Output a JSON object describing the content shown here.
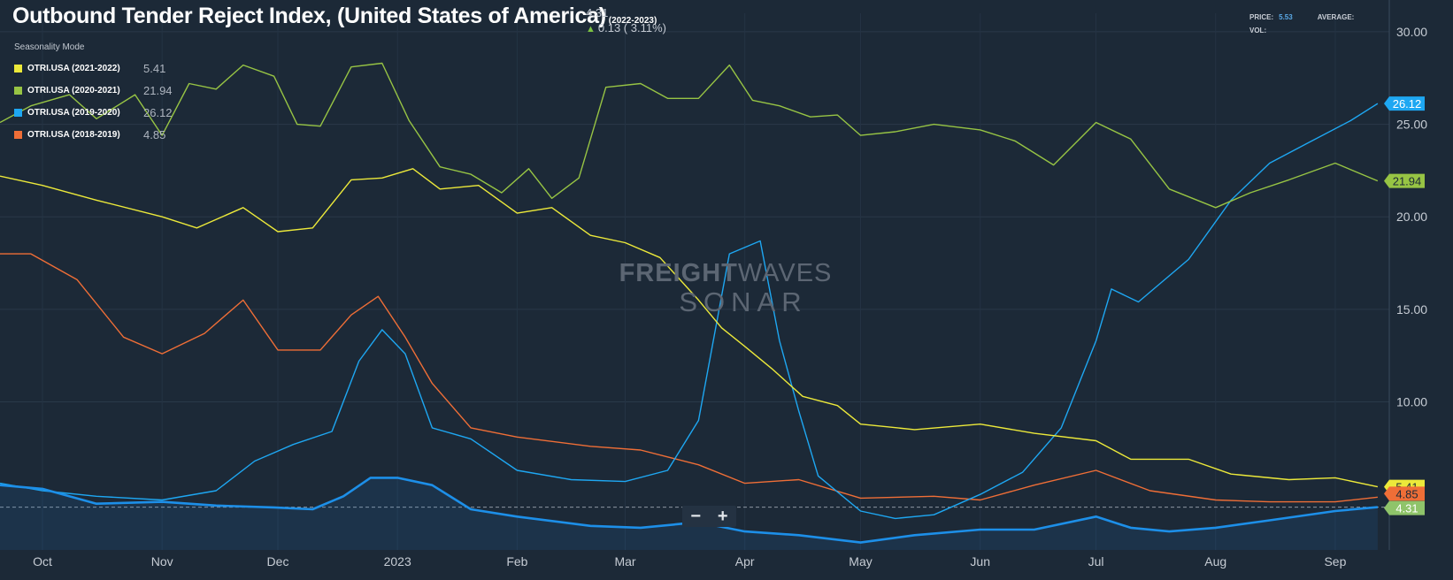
{
  "header": {
    "title": "Outbound Tender Reject Index, (United States of America)",
    "range": "(2022-2023)",
    "last_value": "4.31",
    "change": "0.13 ( 3.11%)"
  },
  "stats": {
    "price_label": "PRICE:",
    "price_value": "5.53",
    "average_label": "AVERAGE:",
    "vol_label": "VOL:"
  },
  "legend": {
    "mode": "Seasonality Mode",
    "items": [
      {
        "name": "OTRI.USA (2021-2022)",
        "value": "5.41",
        "color": "#ece93a"
      },
      {
        "name": "OTRI.USA (2020-2021)",
        "value": "21.94",
        "color": "#97c444"
      },
      {
        "name": "OTRI.USA (2019-2020)",
        "value": "26.12",
        "color": "#1ea7f2"
      },
      {
        "name": "OTRI.USA (2018-2019)",
        "value": "4.85",
        "color": "#ef6e37"
      }
    ]
  },
  "watermark": {
    "brand_bold": "FREIGHT",
    "brand_light": "WAVES",
    "product": "SONAR"
  },
  "zoom": {
    "minus_label": "−",
    "plus_label": "+"
  },
  "chart_data": {
    "type": "line",
    "title": "Outbound Tender Reject Index, (United States of America)",
    "x_range": [
      "2022-09-20",
      "2023-09-15"
    ],
    "x_tick_labels": [
      {
        "label": "Oct",
        "date": "2022-10-01"
      },
      {
        "label": "Nov",
        "date": "2022-11-01"
      },
      {
        "label": "Dec",
        "date": "2022-12-01"
      },
      {
        "label": "2023",
        "date": "2023-01-01"
      },
      {
        "label": "Feb",
        "date": "2023-02-01"
      },
      {
        "label": "Mar",
        "date": "2023-03-01"
      },
      {
        "label": "Apr",
        "date": "2023-04-01"
      },
      {
        "label": "May",
        "date": "2023-05-01"
      },
      {
        "label": "Jun",
        "date": "2023-06-01"
      },
      {
        "label": "Jul",
        "date": "2023-07-01"
      },
      {
        "label": "Aug",
        "date": "2023-08-01"
      },
      {
        "label": "Sep",
        "date": "2023-09-01"
      }
    ],
    "y_ticks": [
      "10.00",
      "15.00",
      "20.00",
      "25.00",
      "30.00"
    ],
    "ylim": [
      2.0,
      31.0
    ],
    "reference_line": 4.31,
    "grid": true,
    "series": [
      {
        "name": "OTRI.USA (2021-2022)",
        "color": "#ece93a",
        "last": "5.41",
        "points": [
          [
            "2022-09-20",
            22.2
          ],
          [
            "2022-10-01",
            21.7
          ],
          [
            "2022-10-15",
            20.9
          ],
          [
            "2022-11-01",
            20.0
          ],
          [
            "2022-11-10",
            19.4
          ],
          [
            "2022-11-22",
            20.5
          ],
          [
            "2022-12-01",
            19.2
          ],
          [
            "2022-12-10",
            19.4
          ],
          [
            "2022-12-20",
            22.0
          ],
          [
            "2022-12-28",
            22.1
          ],
          [
            "2023-01-05",
            22.6
          ],
          [
            "2023-01-12",
            21.5
          ],
          [
            "2023-01-22",
            21.7
          ],
          [
            "2023-02-01",
            20.2
          ],
          [
            "2023-02-10",
            20.5
          ],
          [
            "2023-02-20",
            19.0
          ],
          [
            "2023-03-01",
            18.6
          ],
          [
            "2023-03-10",
            17.8
          ],
          [
            "2023-03-20",
            15.5
          ],
          [
            "2023-03-26",
            14.0
          ],
          [
            "2023-04-01",
            13.0
          ],
          [
            "2023-04-08",
            11.8
          ],
          [
            "2023-04-16",
            10.3
          ],
          [
            "2023-04-25",
            9.8
          ],
          [
            "2023-05-01",
            8.8
          ],
          [
            "2023-05-15",
            8.5
          ],
          [
            "2023-06-01",
            8.8
          ],
          [
            "2023-06-15",
            8.3
          ],
          [
            "2023-07-01",
            7.9
          ],
          [
            "2023-07-10",
            6.9
          ],
          [
            "2023-07-25",
            6.9
          ],
          [
            "2023-08-05",
            6.1
          ],
          [
            "2023-08-20",
            5.8
          ],
          [
            "2023-09-01",
            5.9
          ],
          [
            "2023-09-12",
            5.41
          ]
        ]
      },
      {
        "name": "OTRI.USA (2020-2021)",
        "color": "#97c444",
        "last": "21.94",
        "points": [
          [
            "2022-09-20",
            25.1
          ],
          [
            "2022-09-28",
            26.0
          ],
          [
            "2022-10-08",
            26.6
          ],
          [
            "2022-10-15",
            25.3
          ],
          [
            "2022-10-25",
            26.6
          ],
          [
            "2022-11-01",
            24.4
          ],
          [
            "2022-11-08",
            27.2
          ],
          [
            "2022-11-15",
            26.9
          ],
          [
            "2022-11-22",
            28.2
          ],
          [
            "2022-11-30",
            27.6
          ],
          [
            "2022-12-06",
            25.0
          ],
          [
            "2022-12-12",
            24.9
          ],
          [
            "2022-12-20",
            28.1
          ],
          [
            "2022-12-28",
            28.3
          ],
          [
            "2023-01-04",
            25.2
          ],
          [
            "2023-01-12",
            22.7
          ],
          [
            "2023-01-20",
            22.3
          ],
          [
            "2023-01-28",
            21.3
          ],
          [
            "2023-02-04",
            22.6
          ],
          [
            "2023-02-10",
            21.0
          ],
          [
            "2023-02-17",
            22.1
          ],
          [
            "2023-02-24",
            27.0
          ],
          [
            "2023-03-05",
            27.2
          ],
          [
            "2023-03-12",
            26.4
          ],
          [
            "2023-03-20",
            26.4
          ],
          [
            "2023-03-28",
            28.2
          ],
          [
            "2023-04-03",
            26.3
          ],
          [
            "2023-04-10",
            26.0
          ],
          [
            "2023-04-18",
            25.4
          ],
          [
            "2023-04-25",
            25.5
          ],
          [
            "2023-05-01",
            24.4
          ],
          [
            "2023-05-10",
            24.6
          ],
          [
            "2023-05-20",
            25.0
          ],
          [
            "2023-06-01",
            24.7
          ],
          [
            "2023-06-10",
            24.1
          ],
          [
            "2023-06-20",
            22.8
          ],
          [
            "2023-07-01",
            25.1
          ],
          [
            "2023-07-10",
            24.2
          ],
          [
            "2023-07-20",
            21.5
          ],
          [
            "2023-08-01",
            20.5
          ],
          [
            "2023-08-10",
            21.3
          ],
          [
            "2023-08-20",
            22.0
          ],
          [
            "2023-09-01",
            22.9
          ],
          [
            "2023-09-12",
            21.94
          ]
        ]
      },
      {
        "name": "OTRI.USA (2019-2020)",
        "color": "#1ea7f2",
        "last": "26.12",
        "points": [
          [
            "2022-09-20",
            5.6
          ],
          [
            "2022-10-01",
            5.2
          ],
          [
            "2022-10-15",
            4.9
          ],
          [
            "2022-11-01",
            4.7
          ],
          [
            "2022-11-15",
            5.2
          ],
          [
            "2022-11-25",
            6.8
          ],
          [
            "2022-12-05",
            7.7
          ],
          [
            "2022-12-15",
            8.4
          ],
          [
            "2022-12-22",
            12.2
          ],
          [
            "2022-12-28",
            13.9
          ],
          [
            "2023-01-03",
            12.6
          ],
          [
            "2023-01-10",
            8.6
          ],
          [
            "2023-01-20",
            8.0
          ],
          [
            "2023-02-01",
            6.3
          ],
          [
            "2023-02-15",
            5.8
          ],
          [
            "2023-03-01",
            5.7
          ],
          [
            "2023-03-12",
            6.3
          ],
          [
            "2023-03-20",
            9.0
          ],
          [
            "2023-03-28",
            18.0
          ],
          [
            "2023-04-05",
            18.7
          ],
          [
            "2023-04-10",
            13.3
          ],
          [
            "2023-04-15",
            9.5
          ],
          [
            "2023-04-20",
            6.0
          ],
          [
            "2023-05-01",
            4.1
          ],
          [
            "2023-05-10",
            3.7
          ],
          [
            "2023-05-20",
            3.9
          ],
          [
            "2023-06-01",
            5.0
          ],
          [
            "2023-06-12",
            6.2
          ],
          [
            "2023-06-22",
            8.6
          ],
          [
            "2023-07-01",
            13.3
          ],
          [
            "2023-07-05",
            16.1
          ],
          [
            "2023-07-12",
            15.4
          ],
          [
            "2023-07-25",
            17.7
          ],
          [
            "2023-08-05",
            20.9
          ],
          [
            "2023-08-15",
            22.9
          ],
          [
            "2023-08-25",
            24.0
          ],
          [
            "2023-09-05",
            25.2
          ],
          [
            "2023-09-12",
            26.12
          ]
        ]
      },
      {
        "name": "OTRI.USA (2018-2019)",
        "color": "#ef6e37",
        "last": "4.85",
        "points": [
          [
            "2022-09-20",
            18.0
          ],
          [
            "2022-09-28",
            18.0
          ],
          [
            "2022-10-10",
            16.6
          ],
          [
            "2022-10-22",
            13.5
          ],
          [
            "2022-11-01",
            12.6
          ],
          [
            "2022-11-12",
            13.7
          ],
          [
            "2022-11-22",
            15.5
          ],
          [
            "2022-12-01",
            12.8
          ],
          [
            "2022-12-12",
            12.8
          ],
          [
            "2022-12-20",
            14.7
          ],
          [
            "2022-12-27",
            15.7
          ],
          [
            "2023-01-03",
            13.5
          ],
          [
            "2023-01-10",
            11.0
          ],
          [
            "2023-01-20",
            8.6
          ],
          [
            "2023-02-01",
            8.1
          ],
          [
            "2023-02-20",
            7.6
          ],
          [
            "2023-03-05",
            7.4
          ],
          [
            "2023-03-20",
            6.6
          ],
          [
            "2023-04-01",
            5.6
          ],
          [
            "2023-04-15",
            5.8
          ],
          [
            "2023-05-01",
            4.8
          ],
          [
            "2023-05-20",
            4.9
          ],
          [
            "2023-06-01",
            4.7
          ],
          [
            "2023-06-15",
            5.5
          ],
          [
            "2023-07-01",
            6.3
          ],
          [
            "2023-07-15",
            5.2
          ],
          [
            "2023-08-01",
            4.7
          ],
          [
            "2023-08-15",
            4.6
          ],
          [
            "2023-09-01",
            4.6
          ],
          [
            "2023-09-12",
            4.85
          ]
        ]
      },
      {
        "name": "OTRI.USA (2022-2023)",
        "color": "#1d8fe8",
        "last": "4.31",
        "points": [
          [
            "2022-09-20",
            5.5
          ],
          [
            "2022-10-01",
            5.3
          ],
          [
            "2022-10-15",
            4.5
          ],
          [
            "2022-11-01",
            4.6
          ],
          [
            "2022-11-15",
            4.4
          ],
          [
            "2022-11-30",
            4.3
          ],
          [
            "2022-12-10",
            4.2
          ],
          [
            "2022-12-18",
            4.9
          ],
          [
            "2022-12-25",
            5.9
          ],
          [
            "2023-01-01",
            5.9
          ],
          [
            "2023-01-10",
            5.5
          ],
          [
            "2023-01-20",
            4.2
          ],
          [
            "2023-02-01",
            3.8
          ],
          [
            "2023-02-20",
            3.3
          ],
          [
            "2023-03-05",
            3.2
          ],
          [
            "2023-03-20",
            3.5
          ],
          [
            "2023-04-01",
            3.0
          ],
          [
            "2023-04-15",
            2.8
          ],
          [
            "2023-05-01",
            2.4
          ],
          [
            "2023-05-15",
            2.8
          ],
          [
            "2023-06-01",
            3.1
          ],
          [
            "2023-06-15",
            3.1
          ],
          [
            "2023-07-01",
            3.8
          ],
          [
            "2023-07-10",
            3.2
          ],
          [
            "2023-07-20",
            3.0
          ],
          [
            "2023-08-01",
            3.2
          ],
          [
            "2023-08-15",
            3.6
          ],
          [
            "2023-09-01",
            4.1
          ],
          [
            "2023-09-12",
            4.31
          ]
        ]
      }
    ]
  }
}
